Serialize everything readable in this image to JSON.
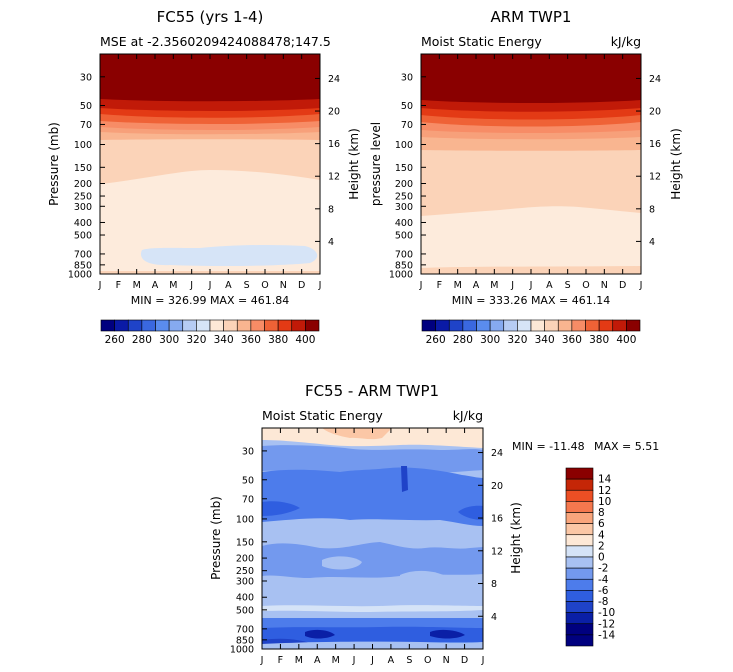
{
  "colors": {
    "plus_scale": [
      "#00007f",
      "#0a1aa6",
      "#1f43c8",
      "#3a68e0",
      "#5a8cee",
      "#86aaf0",
      "#b6ccf4",
      "#d6e4f7",
      "#fde8d6",
      "#fbd3b8",
      "#f9b590",
      "#f78c66",
      "#ef6236",
      "#e33a15",
      "#c11a08",
      "#8a0000"
    ],
    "diff_scale": [
      "#00007f",
      "#0a1fa6",
      "#1f43c8",
      "#2f5ee0",
      "#4d7ceb",
      "#7399ee",
      "#a8c1f2",
      "#d5e3f7",
      "#fde8d6",
      "#fbc7a6",
      "#f9a57c",
      "#f5784e",
      "#ec4f24",
      "#c52607",
      "#8a0000"
    ]
  },
  "chart_data": [
    {
      "id": "fc55",
      "type": "heatmap",
      "title": "FC55 (yrs 1-4)",
      "subtitle_left": "MSE at -2.3560209424088478;147.5",
      "subtitle_right": "",
      "ylabel_left": "Pressure (mb)",
      "ylabel_right": "Height (km)",
      "x_ticks": [
        "J",
        "F",
        "M",
        "A",
        "M",
        "J",
        "J",
        "A",
        "S",
        "O",
        "N",
        "D",
        "J"
      ],
      "pressure_ticks": [
        "30",
        "50",
        "70",
        "100",
        "150",
        "200",
        "250",
        "300",
        "400",
        "500",
        "700",
        "850",
        "1000"
      ],
      "pressure_values": [
        30,
        50,
        70,
        100,
        150,
        200,
        250,
        300,
        400,
        500,
        700,
        850,
        1000
      ],
      "height_ticks": [
        "24",
        "20",
        "16",
        "12",
        "8",
        "4"
      ],
      "height_values": [
        24,
        20,
        16,
        12,
        8,
        4
      ],
      "ylim_mb": [
        1000,
        20
      ],
      "stats": "MIN = 326.99 MAX = 461.84"
    },
    {
      "id": "arm",
      "type": "heatmap",
      "title": "ARM TWP1",
      "subtitle_left": "Moist Static Energy",
      "subtitle_right": "kJ/kg",
      "ylabel_left": "pressure level",
      "ylabel_right": "Height (km)",
      "x_ticks": [
        "J",
        "F",
        "M",
        "A",
        "M",
        "J",
        "J",
        "A",
        "S",
        "O",
        "N",
        "D",
        "J"
      ],
      "pressure_ticks": [
        "30",
        "50",
        "70",
        "100",
        "150",
        "200",
        "250",
        "300",
        "400",
        "500",
        "700",
        "850",
        "1000"
      ],
      "pressure_values": [
        30,
        50,
        70,
        100,
        150,
        200,
        250,
        300,
        400,
        500,
        700,
        850,
        1000
      ],
      "height_ticks": [
        "24",
        "20",
        "16",
        "12",
        "8",
        "4"
      ],
      "height_values": [
        24,
        20,
        16,
        12,
        8,
        4
      ],
      "ylim_mb": [
        1000,
        20
      ],
      "stats": "MIN = 333.26 MAX = 461.14"
    },
    {
      "id": "diff",
      "type": "heatmap",
      "title": "FC55 - ARM TWP1",
      "subtitle_left": "Moist Static Energy",
      "subtitle_right": "kJ/kg",
      "ylabel_left": "Pressure (mb)",
      "ylabel_right": "Height (km)",
      "x_ticks": [
        "J",
        "F",
        "M",
        "A",
        "M",
        "J",
        "J",
        "A",
        "S",
        "O",
        "N",
        "D",
        "J"
      ],
      "pressure_ticks": [
        "30",
        "50",
        "70",
        "100",
        "150",
        "200",
        "250",
        "300",
        "400",
        "500",
        "700",
        "850",
        "1000"
      ],
      "pressure_values": [
        30,
        50,
        70,
        100,
        150,
        200,
        250,
        300,
        400,
        500,
        700,
        850,
        1000
      ],
      "height_ticks": [
        "24",
        "20",
        "16",
        "12",
        "8",
        "4"
      ],
      "height_values": [
        24,
        20,
        16,
        12,
        8,
        4
      ],
      "ylim_mb": [
        1000,
        20
      ],
      "stats_min": "MIN = -11.48",
      "stats_max": "MAX =   5.51"
    }
  ],
  "colorbar_main": {
    "labels": [
      "260",
      "280",
      "300",
      "320",
      "340",
      "360",
      "380",
      "400"
    ]
  },
  "colorbar_diff": {
    "labels": [
      "14",
      "12",
      "10",
      "8",
      "6",
      "4",
      "2",
      "0",
      "-2",
      "-4",
      "-6",
      "-8",
      "-10",
      "-12",
      "-14"
    ]
  }
}
